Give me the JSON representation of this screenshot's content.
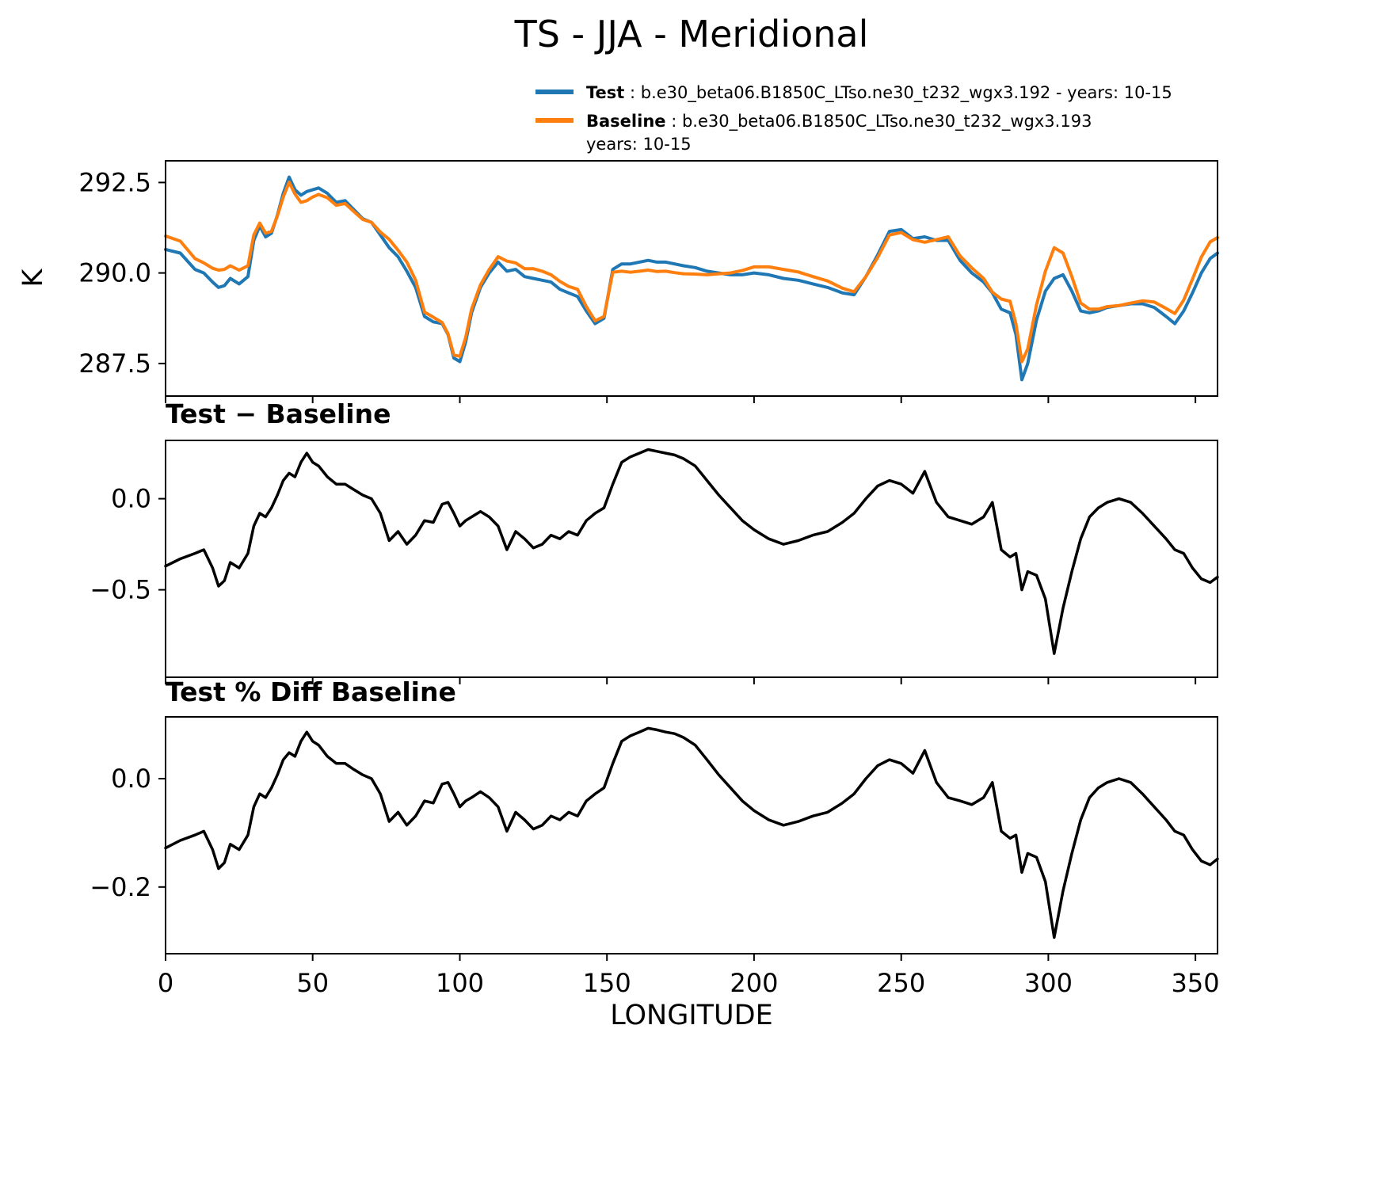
{
  "legend": {
    "entries": [
      {
        "name": "Test",
        "desc": " : b.e30_beta06.B1850C_LTso.ne30_t232_wgx3.192 - years: 10-15",
        "color": "#1f77b4"
      },
      {
        "name": "Baseline",
        "desc": " : b.e30_beta06.B1850C_LTso.ne30_t232_wgx3.193",
        "desc2": "years: 10-15",
        "color": "#ff7f0e"
      }
    ]
  },
  "chart_data": {
    "type": "line",
    "title": "TS - JJA - Meridional",
    "xlabel": "LONGITUDE",
    "xlim": [
      0,
      357.5
    ],
    "xticks": [
      0,
      50,
      100,
      150,
      200,
      250,
      300,
      350
    ],
    "xtick_labels": [
      "0",
      "50",
      "100",
      "150",
      "200",
      "250",
      "300",
      "350"
    ],
    "x": [
      0,
      5,
      10,
      13,
      16,
      18,
      20,
      22,
      25,
      28,
      30,
      32,
      34,
      36,
      38,
      40,
      42,
      44,
      46,
      48,
      50,
      52,
      55,
      58,
      61,
      64,
      67,
      70,
      73,
      76,
      79,
      82,
      85,
      88,
      91,
      94,
      96,
      98,
      100,
      102,
      104,
      107,
      110,
      113,
      116,
      119,
      122,
      125,
      128,
      131,
      134,
      137,
      140,
      143,
      146,
      149,
      152,
      155,
      158,
      161,
      164,
      167,
      170,
      173,
      176,
      180,
      184,
      188,
      192,
      196,
      200,
      205,
      210,
      215,
      220,
      225,
      230,
      234,
      238,
      242,
      246,
      250,
      254,
      258,
      262,
      266,
      270,
      274,
      278,
      281,
      284,
      287,
      289,
      291,
      293,
      296,
      299,
      302,
      305,
      308,
      311,
      314,
      317,
      320,
      324,
      328,
      332,
      336,
      340,
      343,
      346,
      349,
      352,
      355,
      357.5
    ],
    "values": {
      "test": [
        290.65,
        290.55,
        290.1,
        290.0,
        289.75,
        289.6,
        289.65,
        289.85,
        289.7,
        289.9,
        290.9,
        291.3,
        291.0,
        291.1,
        291.6,
        292.2,
        292.65,
        292.3,
        292.15,
        292.25,
        292.3,
        292.35,
        292.2,
        291.95,
        292.0,
        291.75,
        291.5,
        291.4,
        291.05,
        290.7,
        290.45,
        290.05,
        289.6,
        288.8,
        288.65,
        288.6,
        288.3,
        287.65,
        287.55,
        288.1,
        288.9,
        289.6,
        290.0,
        290.3,
        290.05,
        290.1,
        289.9,
        289.85,
        289.8,
        289.75,
        289.55,
        289.45,
        289.35,
        288.95,
        288.6,
        288.75,
        290.1,
        290.25,
        290.25,
        290.3,
        290.35,
        290.3,
        290.3,
        290.25,
        290.2,
        290.15,
        290.05,
        290.0,
        289.95,
        289.95,
        290.0,
        289.95,
        289.85,
        289.8,
        289.7,
        289.6,
        289.45,
        289.4,
        289.9,
        290.5,
        291.15,
        291.2,
        290.95,
        291.0,
        290.9,
        290.9,
        290.35,
        290.0,
        289.75,
        289.45,
        289.0,
        288.9,
        288.3,
        287.05,
        287.5,
        288.7,
        289.5,
        289.85,
        289.95,
        289.5,
        288.95,
        288.9,
        288.95,
        289.05,
        289.1,
        289.15,
        289.15,
        289.05,
        288.8,
        288.6,
        288.95,
        289.45,
        290.0,
        290.4,
        290.55
      ],
      "baseline": [
        291.02,
        290.88,
        290.4,
        290.28,
        290.13,
        290.08,
        290.1,
        290.2,
        290.08,
        290.2,
        291.05,
        291.38,
        291.1,
        291.15,
        291.58,
        292.1,
        292.51,
        292.18,
        291.95,
        292.0,
        292.1,
        292.17,
        292.08,
        291.87,
        291.92,
        291.7,
        291.48,
        291.4,
        291.13,
        290.93,
        290.63,
        290.3,
        289.8,
        288.92,
        288.78,
        288.63,
        288.32,
        287.73,
        287.7,
        288.22,
        289.0,
        289.67,
        290.1,
        290.45,
        290.33,
        290.28,
        290.12,
        290.12,
        290.05,
        289.95,
        289.77,
        289.63,
        289.55,
        289.07,
        288.68,
        288.8,
        290.02,
        290.05,
        290.02,
        290.05,
        290.08,
        290.04,
        290.05,
        290.01,
        289.98,
        289.97,
        289.95,
        289.98,
        290.0,
        290.07,
        290.17,
        290.17,
        290.1,
        290.03,
        289.9,
        289.78,
        289.58,
        289.48,
        289.9,
        290.43,
        291.05,
        291.12,
        290.92,
        290.85,
        290.92,
        291.0,
        290.47,
        290.14,
        289.85,
        289.47,
        289.28,
        289.22,
        288.6,
        287.55,
        287.9,
        289.12,
        290.05,
        290.7,
        290.55,
        289.9,
        289.17,
        289.0,
        289.0,
        289.07,
        289.1,
        289.17,
        289.23,
        289.2,
        289.02,
        288.88,
        289.25,
        289.83,
        290.44,
        290.86,
        290.98
      ],
      "diff": [
        -0.37,
        -0.33,
        -0.3,
        -0.28,
        -0.38,
        -0.48,
        -0.45,
        -0.35,
        -0.38,
        -0.3,
        -0.15,
        -0.08,
        -0.1,
        -0.05,
        0.02,
        0.1,
        0.14,
        0.12,
        0.2,
        0.25,
        0.2,
        0.18,
        0.12,
        0.08,
        0.08,
        0.05,
        0.02,
        0.0,
        -0.08,
        -0.23,
        -0.18,
        -0.25,
        -0.2,
        -0.12,
        -0.13,
        -0.03,
        -0.02,
        -0.08,
        -0.15,
        -0.12,
        -0.1,
        -0.07,
        -0.1,
        -0.15,
        -0.28,
        -0.18,
        -0.22,
        -0.27,
        -0.25,
        -0.2,
        -0.22,
        -0.18,
        -0.2,
        -0.12,
        -0.08,
        -0.05,
        0.08,
        0.2,
        0.23,
        0.25,
        0.27,
        0.26,
        0.25,
        0.24,
        0.22,
        0.18,
        0.1,
        0.02,
        -0.05,
        -0.12,
        -0.17,
        -0.22,
        -0.25,
        -0.23,
        -0.2,
        -0.18,
        -0.13,
        -0.08,
        0.0,
        0.07,
        0.1,
        0.08,
        0.03,
        0.15,
        -0.02,
        -0.1,
        -0.12,
        -0.14,
        -0.1,
        -0.02,
        -0.28,
        -0.32,
        -0.3,
        -0.5,
        -0.4,
        -0.42,
        -0.55,
        -0.85,
        -0.6,
        -0.4,
        -0.22,
        -0.1,
        -0.05,
        -0.02,
        0.0,
        -0.02,
        -0.08,
        -0.15,
        -0.22,
        -0.28,
        -0.3,
        -0.38,
        -0.44,
        -0.46,
        -0.43
      ],
      "pct_diff": [
        -0.128,
        -0.114,
        -0.104,
        -0.097,
        -0.131,
        -0.166,
        -0.155,
        -0.121,
        -0.131,
        -0.104,
        -0.052,
        -0.028,
        -0.035,
        -0.017,
        0.007,
        0.035,
        0.048,
        0.041,
        0.069,
        0.086,
        0.069,
        0.062,
        0.041,
        0.028,
        0.028,
        0.017,
        0.007,
        0.0,
        -0.028,
        -0.079,
        -0.062,
        -0.086,
        -0.069,
        -0.041,
        -0.045,
        -0.01,
        -0.007,
        -0.028,
        -0.052,
        -0.041,
        -0.035,
        -0.024,
        -0.035,
        -0.052,
        -0.097,
        -0.062,
        -0.076,
        -0.093,
        -0.086,
        -0.069,
        -0.076,
        -0.062,
        -0.069,
        -0.041,
        -0.028,
        -0.017,
        0.028,
        0.069,
        0.079,
        0.086,
        0.093,
        0.09,
        0.086,
        0.083,
        0.076,
        0.062,
        0.035,
        0.007,
        -0.017,
        -0.041,
        -0.059,
        -0.076,
        -0.086,
        -0.079,
        -0.069,
        -0.062,
        -0.045,
        -0.028,
        0.0,
        0.024,
        0.035,
        0.028,
        0.01,
        0.052,
        -0.007,
        -0.035,
        -0.041,
        -0.048,
        -0.035,
        -0.007,
        -0.097,
        -0.11,
        -0.104,
        -0.173,
        -0.138,
        -0.145,
        -0.19,
        -0.293,
        -0.207,
        -0.138,
        -0.076,
        -0.035,
        -0.017,
        -0.007,
        0.0,
        -0.007,
        -0.028,
        -0.052,
        -0.076,
        -0.097,
        -0.104,
        -0.131,
        -0.152,
        -0.159,
        -0.148
      ]
    },
    "panels": [
      {
        "title": "",
        "ylabel": "K",
        "ylim": [
          286.6,
          293.1
        ],
        "yticks": [
          292.5,
          290.0,
          287.5
        ],
        "ytick_labels": [
          "292.5",
          "290.0",
          "287.5"
        ],
        "show_xtick_labels": false,
        "series": [
          {
            "name": "Test",
            "key": "test",
            "color": "#1f77b4",
            "linewidth": 4
          },
          {
            "name": "Baseline",
            "key": "baseline",
            "color": "#ff7f0e",
            "linewidth": 4
          }
        ]
      },
      {
        "title": "Test − Baseline",
        "ylabel": "",
        "ylim": [
          -0.98,
          0.32
        ],
        "yticks": [
          0.0,
          -0.5
        ],
        "ytick_labels": [
          "0.0",
          "−0.5"
        ],
        "show_xtick_labels": false,
        "series": [
          {
            "name": "Test − Baseline",
            "key": "diff",
            "color": "#000000",
            "linewidth": 3.5
          }
        ]
      },
      {
        "title": "Test % Diff Baseline",
        "ylabel": "",
        "ylim": [
          -0.323,
          0.114
        ],
        "yticks": [
          0.0,
          -0.2
        ],
        "ytick_labels": [
          "0.0",
          "−0.2"
        ],
        "show_xtick_labels": true,
        "series": [
          {
            "name": "Test % Diff Baseline",
            "key": "pct_diff",
            "color": "#000000",
            "linewidth": 3.5
          }
        ]
      }
    ]
  }
}
